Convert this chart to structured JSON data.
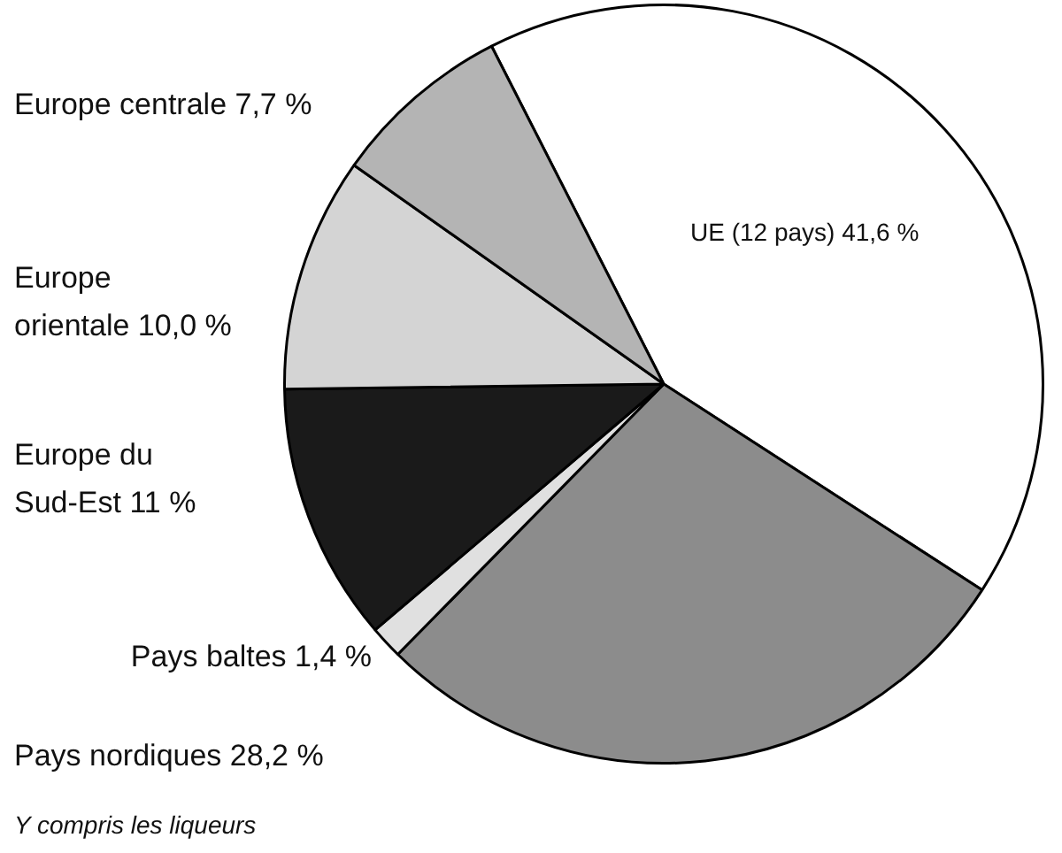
{
  "chart_data": {
    "type": "pie",
    "categories": [
      "UE (12 pays)",
      "Pays nordiques",
      "Pays baltes",
      "Europe du Sud-Est",
      "Europe orientale",
      "Europe centrale"
    ],
    "values": [
      41.6,
      28.2,
      1.4,
      11,
      10.0,
      7.7
    ],
    "value_labels": [
      "41,6 %",
      "28,2 %",
      "1,4 %",
      "11 %",
      "10,0 %",
      "7,7 %"
    ],
    "colors": [
      "#ffffff",
      "#8c8c8c",
      "#e0e0e0",
      "#1a1a1a",
      "#d4d4d4",
      "#b4b4b4"
    ],
    "annotations": [
      "Y compris les liqueurs"
    ],
    "legend": false
  }
}
